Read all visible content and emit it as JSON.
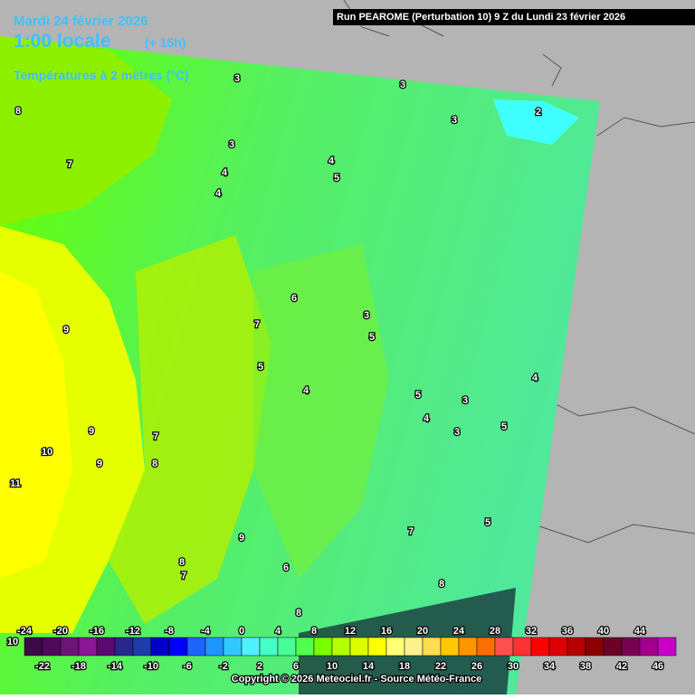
{
  "header": {
    "date": "Mardi 24 février 2026",
    "time": "1:00 locale",
    "lead": "(+ 15h)",
    "parameter": "Températures à 2 mètres (°C)",
    "run": "Run PEAROME (Perturbation 10) 9 Z du Lundi 23 février 2026"
  },
  "map": {
    "contour_labels": [
      3,
      3,
      2,
      3,
      8,
      7,
      3,
      4,
      5,
      4,
      4,
      6,
      7,
      3,
      5,
      9,
      5,
      4,
      4,
      5,
      3,
      4,
      5,
      3,
      9,
      7,
      10,
      8,
      9,
      11,
      7,
      5,
      9,
      8,
      7,
      6,
      8,
      8
    ]
  },
  "legend": {
    "side_label": "10",
    "top_labels": [
      -24,
      -20,
      -16,
      -12,
      -8,
      -4,
      0,
      4,
      8,
      12,
      16,
      20,
      24,
      28,
      32,
      36,
      40,
      44
    ],
    "bottom_labels": [
      -22,
      -18,
      -14,
      -10,
      -6,
      -2,
      2,
      6,
      10,
      14,
      18,
      22,
      26,
      30,
      34,
      38,
      42,
      46
    ],
    "colors": [
      "#3c0a46",
      "#500a5a",
      "#6e1478",
      "#8c1496",
      "#5a0a6e",
      "#28288c",
      "#1e3caa",
      "#0000c8",
      "#0000ff",
      "#1e64ff",
      "#1e96ff",
      "#32c8ff",
      "#50f0ff",
      "#46ffc8",
      "#46ff96",
      "#50ff50",
      "#78ff00",
      "#b4ff00",
      "#dcff00",
      "#ffff00",
      "#ffff78",
      "#fff08c",
      "#ffdc50",
      "#ffc800",
      "#ff9600",
      "#ff6e00",
      "#ff5050",
      "#ff3232",
      "#ff0000",
      "#dc0000",
      "#b40000",
      "#8c0000",
      "#6e0028",
      "#780050",
      "#a0008c",
      "#c800c8"
    ]
  },
  "footer": {
    "copyright": "Copyright © 2026 Meteociel.fr - Source Météo-France"
  }
}
